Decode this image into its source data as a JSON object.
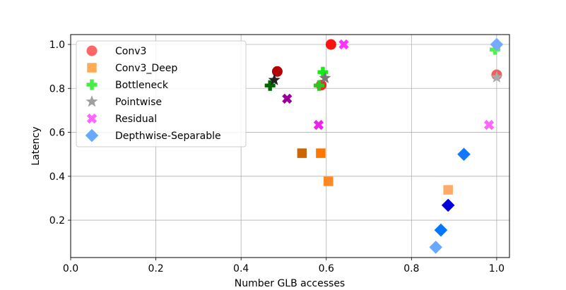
{
  "chart_data": {
    "type": "scatter",
    "xlabel": "Number GLB accesses",
    "ylabel": "Latency",
    "xlim": [
      0.0,
      1.03
    ],
    "ylim": [
      0.03,
      1.045
    ],
    "xticks": [
      "0.0",
      "0.2",
      "0.4",
      "0.6",
      "0.8",
      "1.0"
    ],
    "yticks": [
      "0.2",
      "0.4",
      "0.6",
      "0.8",
      "1.0"
    ],
    "grid": true,
    "legend_position": "upper-left",
    "series": [
      {
        "name": "Conv3",
        "marker": "circle",
        "legend_color": "#ff6666",
        "points": [
          {
            "x": 0.485,
            "y": 0.877,
            "color": "#b30000"
          },
          {
            "x": 0.588,
            "y": 0.815,
            "color": "#ff2222"
          },
          {
            "x": 0.611,
            "y": 1.0,
            "color": "#ff1111"
          },
          {
            "x": 1.0,
            "y": 0.862,
            "color": "#f06060"
          }
        ]
      },
      {
        "name": "Conv3_Deep",
        "marker": "square",
        "legend_color": "#ffaa55",
        "points": [
          {
            "x": 0.543,
            "y": 0.505,
            "color": "#cc6600"
          },
          {
            "x": 0.587,
            "y": 0.505,
            "color": "#ff7700"
          },
          {
            "x": 0.605,
            "y": 0.377,
            "color": "#ff8822"
          },
          {
            "x": 0.886,
            "y": 0.338,
            "color": "#ffaa66"
          }
        ]
      },
      {
        "name": "Bottleneck",
        "marker": "plus",
        "legend_color": "#44ee44",
        "points": [
          {
            "x": 0.468,
            "y": 0.813,
            "color": "#006600"
          },
          {
            "x": 0.583,
            "y": 0.813,
            "color": "#22cc22"
          },
          {
            "x": 0.592,
            "y": 0.874,
            "color": "#11ee11"
          },
          {
            "x": 0.996,
            "y": 0.977,
            "color": "#55ee55"
          }
        ]
      },
      {
        "name": "Pointwise",
        "marker": "star",
        "legend_color": "#a0a0a0",
        "points": [
          {
            "x": 0.478,
            "y": 0.838,
            "color": "#222222"
          },
          {
            "x": 0.597,
            "y": 0.847,
            "color": "#777777"
          },
          {
            "x": 1.0,
            "y": 0.85,
            "color": "#aaaaaa"
          }
        ]
      },
      {
        "name": "Residual",
        "marker": "x",
        "legend_color": "#ff66ff",
        "points": [
          {
            "x": 0.508,
            "y": 0.753,
            "color": "#990099"
          },
          {
            "x": 0.582,
            "y": 0.634,
            "color": "#ee22ee"
          },
          {
            "x": 0.641,
            "y": 1.0,
            "color": "#ff33ff"
          },
          {
            "x": 0.982,
            "y": 0.634,
            "color": "#ff66ff"
          }
        ]
      },
      {
        "name": "Depthwise-Separable",
        "marker": "diamond",
        "legend_color": "#66aaff",
        "points": [
          {
            "x": 0.886,
            "y": 0.268,
            "color": "#0000dd"
          },
          {
            "x": 0.869,
            "y": 0.155,
            "color": "#0077ff"
          },
          {
            "x": 0.923,
            "y": 0.5,
            "color": "#1177ff"
          },
          {
            "x": 0.857,
            "y": 0.077,
            "color": "#66aaff"
          },
          {
            "x": 1.0,
            "y": 1.0,
            "color": "#77aaff"
          }
        ]
      }
    ]
  }
}
